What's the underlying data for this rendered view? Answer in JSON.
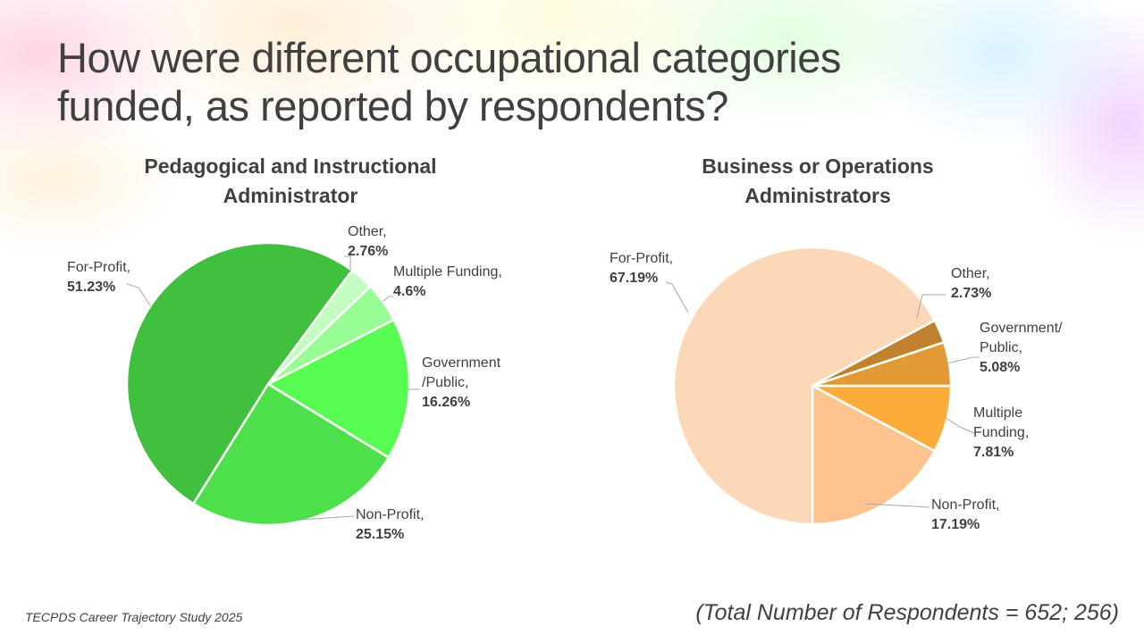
{
  "title": "How were different occupational categories funded, as reported by respondents?",
  "title_lines": [
    "How were different occupational categories",
    "funded, as reported by respondents?"
  ],
  "source": "TECPDS Career Trajectory Study 2025",
  "total_note": "(Total Number of Respondents = 652; 256)",
  "chart_data": [
    {
      "type": "pie",
      "title": "Pedagogical and Instructional Administrator",
      "title_lines": [
        "Pedagogical and Instructional",
        "Administrator"
      ],
      "slices": [
        {
          "label": "Other,",
          "value": 2.76,
          "pct": "2.76%",
          "color": "#c4fdc2"
        },
        {
          "label": "Multiple Funding,",
          "value": 4.6,
          "pct": "4.6%",
          "color": "#97fd94"
        },
        {
          "label": "Government /Public,",
          "value": 16.26,
          "pct": "16.26%",
          "color": "#58fd52"
        },
        {
          "label": "Non-Profit,",
          "value": 25.15,
          "pct": "25.15%",
          "color": "#4de04b"
        },
        {
          "label": "For-Profit,",
          "value": 51.23,
          "pct": "51.23%",
          "color": "#41bf3f"
        }
      ]
    },
    {
      "type": "pie",
      "title": "Business or Operations Administrators",
      "title_lines": [
        "Business or Operations",
        "Administrators"
      ],
      "slices": [
        {
          "label": "Multiple Funding,",
          "value": 7.81,
          "pct": "7.81%",
          "color": "#fdac3c"
        },
        {
          "label": "Non-Profit,",
          "value": 17.19,
          "pct": "17.19%",
          "color": "#fec48f"
        },
        {
          "label": "For-Profit,",
          "value": 67.19,
          "pct": "67.19%",
          "color": "#fdd8b8"
        },
        {
          "label": "Other,",
          "value": 2.73,
          "pct": "2.73%",
          "color": "#c0822d"
        },
        {
          "label": "Government/ Public,",
          "value": 5.08,
          "pct": "5.08%",
          "color": "#e29a37"
        }
      ]
    }
  ]
}
